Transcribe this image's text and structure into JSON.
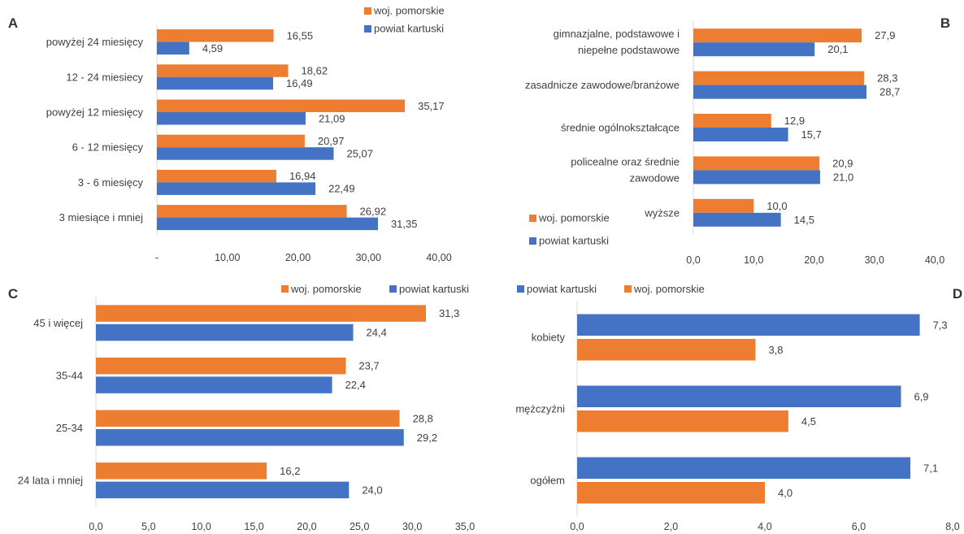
{
  "colors": {
    "orange": "#ED7D31",
    "blue": "#4472C4",
    "text": "#404040",
    "axis": "#D9D9D9"
  },
  "chart_data": [
    {
      "panel": "A",
      "type": "bar",
      "orientation": "horizontal",
      "categories": [
        "3 miesiące i mniej",
        "3 - 6 miesięcy",
        "6 - 12 miesięcy",
        "powyżej 12 miesięcy",
        "12 - 24 miesiecy",
        "powyżej 24 miesięcy"
      ],
      "series": [
        {
          "name": "woj. pomorskie",
          "color": "#ED7D31",
          "values": [
            26.92,
            16.94,
            20.97,
            35.17,
            18.62,
            16.55
          ],
          "labels": [
            "26,92",
            "16,94",
            "20,97",
            "35,17",
            "18,62",
            "16,55"
          ]
        },
        {
          "name": "powiat kartuski",
          "color": "#4472C4",
          "values": [
            31.35,
            22.49,
            25.07,
            21.09,
            16.49,
            4.59
          ],
          "labels": [
            "31,35",
            "22,49",
            "25,07",
            "21,09",
            "16,49",
            "4,59"
          ]
        }
      ],
      "xlim": [
        0,
        40
      ],
      "ticks": [
        0,
        10,
        20,
        30,
        40
      ],
      "tick_labels": [
        "-",
        "10,00",
        "20,00",
        "30,00",
        "40,00"
      ],
      "legend": "top-right"
    },
    {
      "panel": "B",
      "type": "bar",
      "orientation": "horizontal",
      "categories": [
        "wyższe",
        "policealne oraz średnie zawodowe",
        "średnie ogólnokształcące",
        "zasadnicze zawodowe/branżowe",
        "gimnazjalne, podstawowe i niepełne podstawowe"
      ],
      "series": [
        {
          "name": "woj. pomorskie",
          "color": "#ED7D31",
          "values": [
            10.0,
            20.9,
            12.9,
            28.3,
            27.9
          ],
          "labels": [
            "10,0",
            "20,9",
            "12,9",
            "28,3",
            "27,9"
          ]
        },
        {
          "name": "powiat kartuski",
          "color": "#4472C4",
          "values": [
            14.5,
            21.0,
            15.7,
            28.7,
            20.1
          ],
          "labels": [
            "14,5",
            "21,0",
            "15,7",
            "28,7",
            "20,1"
          ]
        }
      ],
      "xlim": [
        0,
        40
      ],
      "ticks": [
        0,
        10,
        20,
        30,
        40
      ],
      "tick_labels": [
        "0,0",
        "10,0",
        "20,0",
        "30,0",
        "40,0"
      ],
      "legend": "bottom-left"
    },
    {
      "panel": "C",
      "type": "bar",
      "orientation": "horizontal",
      "categories": [
        "24 lata i mniej",
        "25-34",
        "35-44",
        "45 i więcej"
      ],
      "series": [
        {
          "name": "woj. pomorskie",
          "color": "#ED7D31",
          "values": [
            16.2,
            28.8,
            23.7,
            31.3
          ],
          "labels": [
            "16,2",
            "28,8",
            "23,7",
            "31,3"
          ]
        },
        {
          "name": "powiat kartuski",
          "color": "#4472C4",
          "values": [
            24.0,
            29.2,
            22.4,
            24.4
          ],
          "labels": [
            "24,0",
            "29,2",
            "22,4",
            "24,4"
          ]
        }
      ],
      "xlim": [
        0,
        35
      ],
      "ticks": [
        0,
        5,
        10,
        15,
        20,
        25,
        30,
        35
      ],
      "tick_labels": [
        "0,0",
        "5,0",
        "10,0",
        "15,0",
        "20,0",
        "25,0",
        "30,0",
        "35,0"
      ],
      "legend": "top-right"
    },
    {
      "panel": "D",
      "type": "bar",
      "orientation": "horizontal",
      "categories": [
        "ogółem",
        "mężczyźni",
        "kobiety"
      ],
      "series": [
        {
          "name": "powiat kartuski",
          "color": "#4472C4",
          "values": [
            7.1,
            6.9,
            7.3
          ],
          "labels": [
            "7,1",
            "6,9",
            "7,3"
          ]
        },
        {
          "name": "woj. pomorskie",
          "color": "#ED7D31",
          "values": [
            4.0,
            4.5,
            3.8
          ],
          "labels": [
            "4,0",
            "4,5",
            "3,8"
          ]
        }
      ],
      "xlim": [
        0,
        8
      ],
      "ticks": [
        0,
        2,
        4,
        6,
        8
      ],
      "tick_labels": [
        "0,0",
        "2,0",
        "4,0",
        "6,0",
        "8,0"
      ],
      "legend": "top-left"
    }
  ]
}
